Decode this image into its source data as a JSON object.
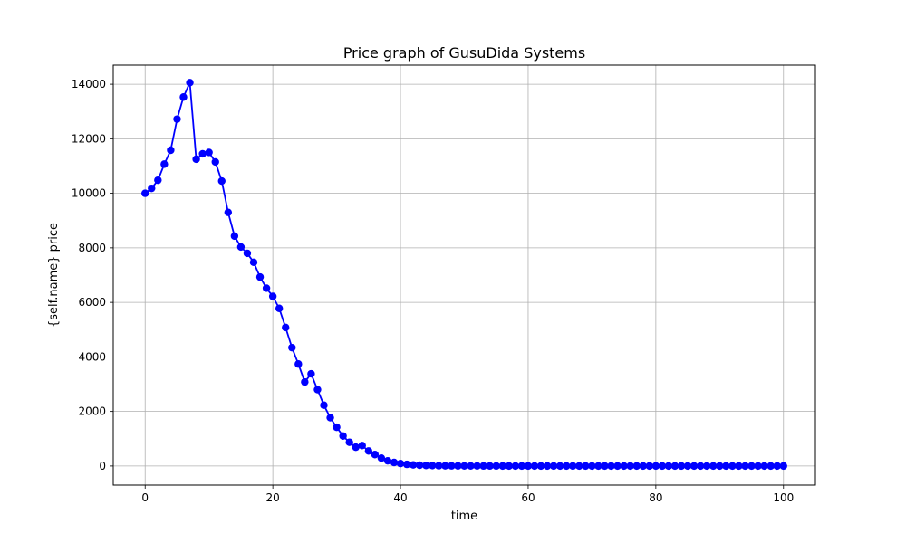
{
  "chart_data": {
    "type": "line",
    "title": "Price graph of GusuDida Systems",
    "xlabel": "time",
    "ylabel": "{self.name} price",
    "xlim": [
      -5,
      105
    ],
    "ylim": [
      -700,
      14700
    ],
    "xticks": [
      0,
      20,
      40,
      60,
      80,
      100
    ],
    "yticks": [
      0,
      2000,
      4000,
      6000,
      8000,
      10000,
      12000,
      14000
    ],
    "grid": true,
    "marker": "circle",
    "series": [
      {
        "color": "#0000ff",
        "x": [
          0,
          1,
          2,
          3,
          4,
          5,
          6,
          7,
          8,
          9,
          10,
          11,
          12,
          13,
          14,
          15,
          16,
          17,
          18,
          19,
          20,
          21,
          22,
          23,
          24,
          25,
          26,
          27,
          28,
          29,
          30,
          31,
          32,
          33,
          34,
          35,
          36,
          37,
          38,
          39,
          40,
          41,
          42,
          43,
          44,
          45,
          46,
          47,
          48,
          49,
          50,
          51,
          52,
          53,
          54,
          55,
          56,
          57,
          58,
          59,
          60,
          61,
          62,
          63,
          64,
          65,
          66,
          67,
          68,
          69,
          70,
          71,
          72,
          73,
          74,
          75,
          76,
          77,
          78,
          79,
          80,
          81,
          82,
          83,
          84,
          85,
          86,
          87,
          88,
          89,
          90,
          91,
          92,
          93,
          94,
          95,
          96,
          97,
          98,
          99,
          100
        ],
        "y": [
          10000,
          10180,
          10480,
          11070,
          11580,
          12720,
          13530,
          14060,
          11250,
          11450,
          11500,
          11150,
          10450,
          9300,
          8430,
          8030,
          7800,
          7470,
          6930,
          6520,
          6220,
          5780,
          5080,
          4340,
          3740,
          3080,
          3380,
          2800,
          2230,
          1770,
          1420,
          1100,
          870,
          690,
          750,
          550,
          420,
          290,
          190,
          130,
          90,
          60,
          40,
          30,
          20,
          15,
          10,
          8,
          6,
          5,
          4,
          3,
          3,
          2,
          2,
          2,
          1,
          1,
          1,
          1,
          1,
          1,
          1,
          1,
          1,
          1,
          1,
          1,
          1,
          1,
          1,
          1,
          1,
          1,
          1,
          1,
          1,
          1,
          1,
          1,
          1,
          1,
          1,
          1,
          1,
          1,
          1,
          1,
          1,
          1,
          1,
          1,
          1,
          1,
          1,
          1,
          1,
          1,
          1,
          1,
          1
        ]
      }
    ]
  }
}
